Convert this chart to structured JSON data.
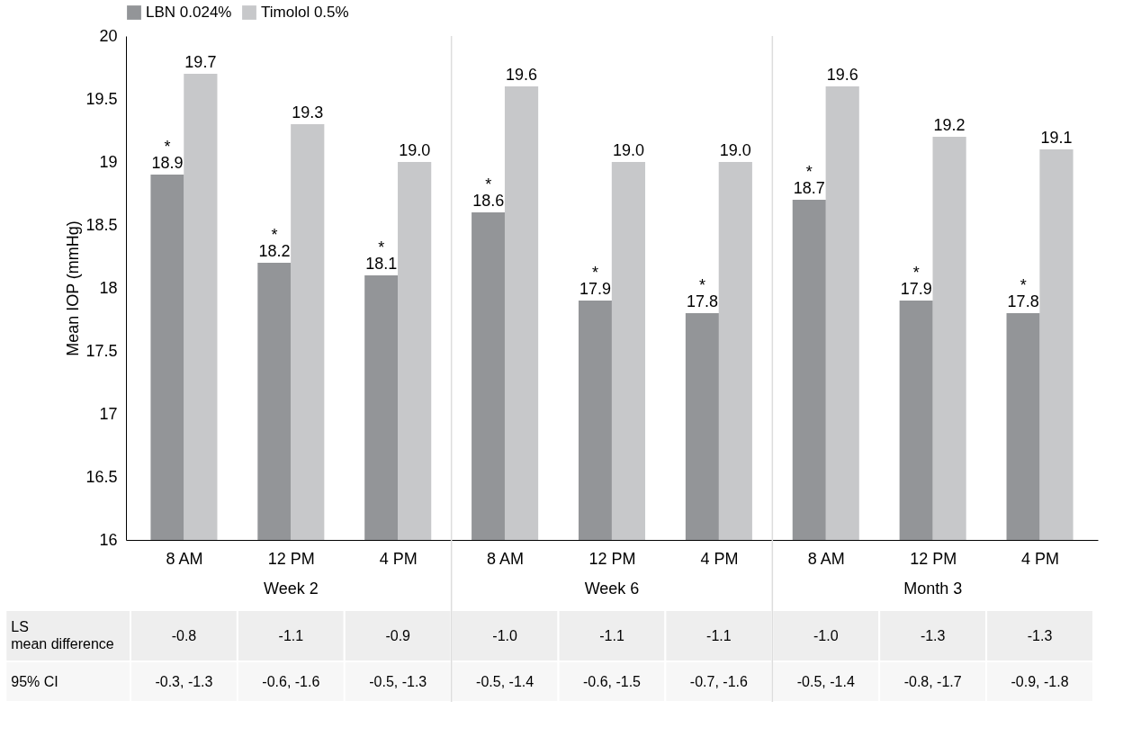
{
  "chart_data": {
    "type": "bar",
    "ylabel": "Mean IOP (mmHg)",
    "categories": [
      "8 AM",
      "12 PM",
      "4 PM",
      "8 AM",
      "12 PM",
      "4 PM",
      "8 AM",
      "12 PM",
      "4 PM"
    ],
    "series": [
      {
        "name": "LBN 0.024%",
        "color": "#939598",
        "values": [
          18.9,
          18.2,
          18.1,
          18.6,
          17.9,
          17.8,
          18.7,
          17.9,
          17.8
        ],
        "value_labels": [
          "18.9",
          "18.2",
          "18.1",
          "18.6",
          "17.9",
          "17.8",
          "18.7",
          "17.9",
          "17.8"
        ]
      },
      {
        "name": "Timolol 0.5%",
        "color": "#c7c8ca",
        "values": [
          19.7,
          19.3,
          19.0,
          19.6,
          19.0,
          19.0,
          19.6,
          19.2,
          19.1
        ],
        "value_labels": [
          "19.7",
          "19.3",
          "19.0",
          "19.6",
          "19.0",
          "19.0",
          "19.6",
          "19.2",
          "19.1"
        ]
      }
    ],
    "ylim": [
      16,
      20
    ],
    "yticks": [
      16,
      16.5,
      17,
      17.5,
      18,
      18.5,
      19,
      19.5,
      20
    ],
    "grid": false,
    "legend": "top",
    "annotations": [
      "Week 2",
      "Week 6",
      "Month 3",
      "LS mean difference",
      "-0.8",
      "-1.1",
      "-0.9",
      "-1.0",
      "-1.1",
      "-1.1",
      "-1.0",
      "-1.3",
      "-1.3",
      "95% CI",
      "-0.3, -1.3",
      "-0.6, -1.6",
      "-0.5, -1.3",
      "-0.5, -1.4",
      "-0.6, -1.5",
      "-0.7, -1.6",
      "-0.5, -1.4",
      "-0.8, -1.7",
      "-0.9, -1.8",
      "*",
      "*",
      "*",
      "*",
      "*",
      "*",
      "*",
      "*",
      "*"
    ]
  }
}
